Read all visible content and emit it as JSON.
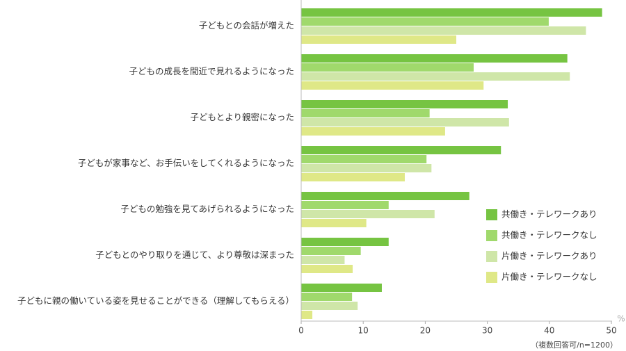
{
  "chart_data": {
    "type": "hbar",
    "categories": [
      "子どもとの会話が増えた",
      "子どもの成長を間近で見れるようになった",
      "子どもとより親密になった",
      "子どもが家事など、お手伝いをしてくれるようになった",
      "子どもの勉強を見てあげられるようになった",
      "子どもとのやり取りを通じて、より尊敬は深まった",
      "子どもに親の働いている姿を見せることができる（理解してもらえる）"
    ],
    "series": [
      {
        "name": "共働き・テレワークあり",
        "color": "#76c442",
        "values": [
          48.5,
          42.9,
          33.3,
          32.2,
          27.1,
          14.1,
          13.0
        ]
      },
      {
        "name": "共働き・テレワークなし",
        "color": "#a0d96c",
        "values": [
          39.9,
          27.8,
          20.7,
          20.2,
          14.1,
          9.6,
          8.2
        ]
      },
      {
        "name": "片働き・テレワークあり",
        "color": "#cfe6a8",
        "values": [
          45.9,
          43.3,
          33.5,
          21.0,
          21.5,
          7.0,
          9.1
        ]
      },
      {
        "name": "片働き・テレワークなし",
        "color": "#dfe887",
        "values": [
          25.0,
          29.4,
          23.2,
          16.7,
          10.5,
          8.3,
          1.8
        ]
      }
    ],
    "xlim": [
      0,
      50
    ],
    "xticks": [
      0,
      10,
      20,
      30,
      40,
      50
    ],
    "x_unit": "%",
    "note": "（複数回答可/n=1200）"
  }
}
